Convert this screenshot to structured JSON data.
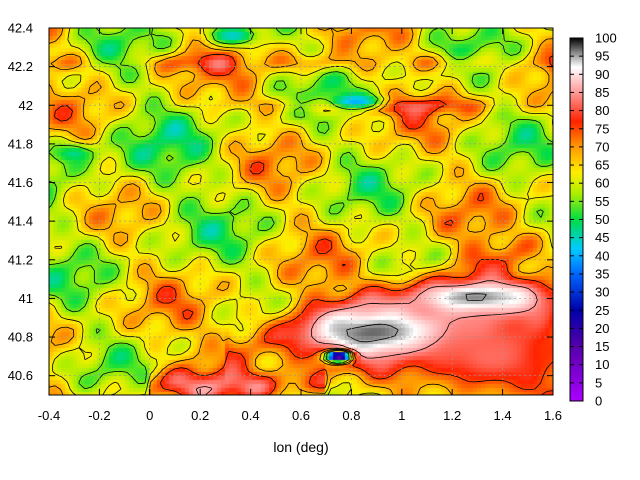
{
  "chart_data": {
    "type": "heatmap",
    "title": "",
    "xlabel": "lon (deg)",
    "ylabel": "",
    "xlim": [
      -0.4,
      1.6
    ],
    "ylim": [
      40.5,
      42.4
    ],
    "x_ticks": [
      "-0.4",
      "-0.2",
      "0",
      "0.2",
      "0.4",
      "0.6",
      "0.8",
      "1",
      "1.2",
      "1.4",
      "1.6"
    ],
    "y_ticks": [
      "40.6",
      "40.8",
      "41",
      "41.2",
      "41.4",
      "41.6",
      "41.8",
      "42",
      "42.2",
      "42.4"
    ],
    "grid": true,
    "contours": true,
    "colorbar": {
      "min": 0,
      "max": 100,
      "ticks": [
        "0",
        "5",
        "10",
        "15",
        "20",
        "25",
        "30",
        "35",
        "40",
        "45",
        "50",
        "55",
        "60",
        "65",
        "70",
        "75",
        "80",
        "85",
        "90",
        "95",
        "100"
      ],
      "palette": [
        {
          "value": 0,
          "color": "#aa00ff"
        },
        {
          "value": 15,
          "color": "#5500aa"
        },
        {
          "value": 25,
          "color": "#0000aa"
        },
        {
          "value": 35,
          "color": "#0066ff"
        },
        {
          "value": 42,
          "color": "#00ccff"
        },
        {
          "value": 50,
          "color": "#00dd44"
        },
        {
          "value": 57,
          "color": "#aaee00"
        },
        {
          "value": 63,
          "color": "#ffee00"
        },
        {
          "value": 70,
          "color": "#ff9900"
        },
        {
          "value": 77,
          "color": "#ff2200"
        },
        {
          "value": 85,
          "color": "#ff9999"
        },
        {
          "value": 92,
          "color": "#ffffff"
        },
        {
          "value": 96,
          "color": "#888888"
        },
        {
          "value": 100,
          "color": "#000000"
        }
      ]
    },
    "field_features": [
      {
        "kind": "high",
        "x": 0.95,
        "y": 40.82,
        "rx": 0.42,
        "ry": 0.15,
        "value": 100
      },
      {
        "kind": "high",
        "x": 1.3,
        "y": 41.0,
        "rx": 0.3,
        "ry": 0.1,
        "value": 100
      },
      {
        "kind": "high",
        "x": 1.35,
        "y": 40.7,
        "rx": 0.35,
        "ry": 0.25,
        "value": 82
      },
      {
        "kind": "low",
        "x": 0.33,
        "y": 42.36,
        "rx": 0.1,
        "ry": 0.05,
        "value": 44
      },
      {
        "kind": "low",
        "x": 0.82,
        "y": 42.02,
        "rx": 0.12,
        "ry": 0.04,
        "value": 40
      },
      {
        "kind": "low",
        "x": -0.3,
        "y": 41.75,
        "rx": 0.08,
        "ry": 0.05,
        "value": 47
      },
      {
        "kind": "low",
        "x": 0.75,
        "y": 40.7,
        "rx": 0.05,
        "ry": 0.03,
        "value": 10
      }
    ]
  }
}
